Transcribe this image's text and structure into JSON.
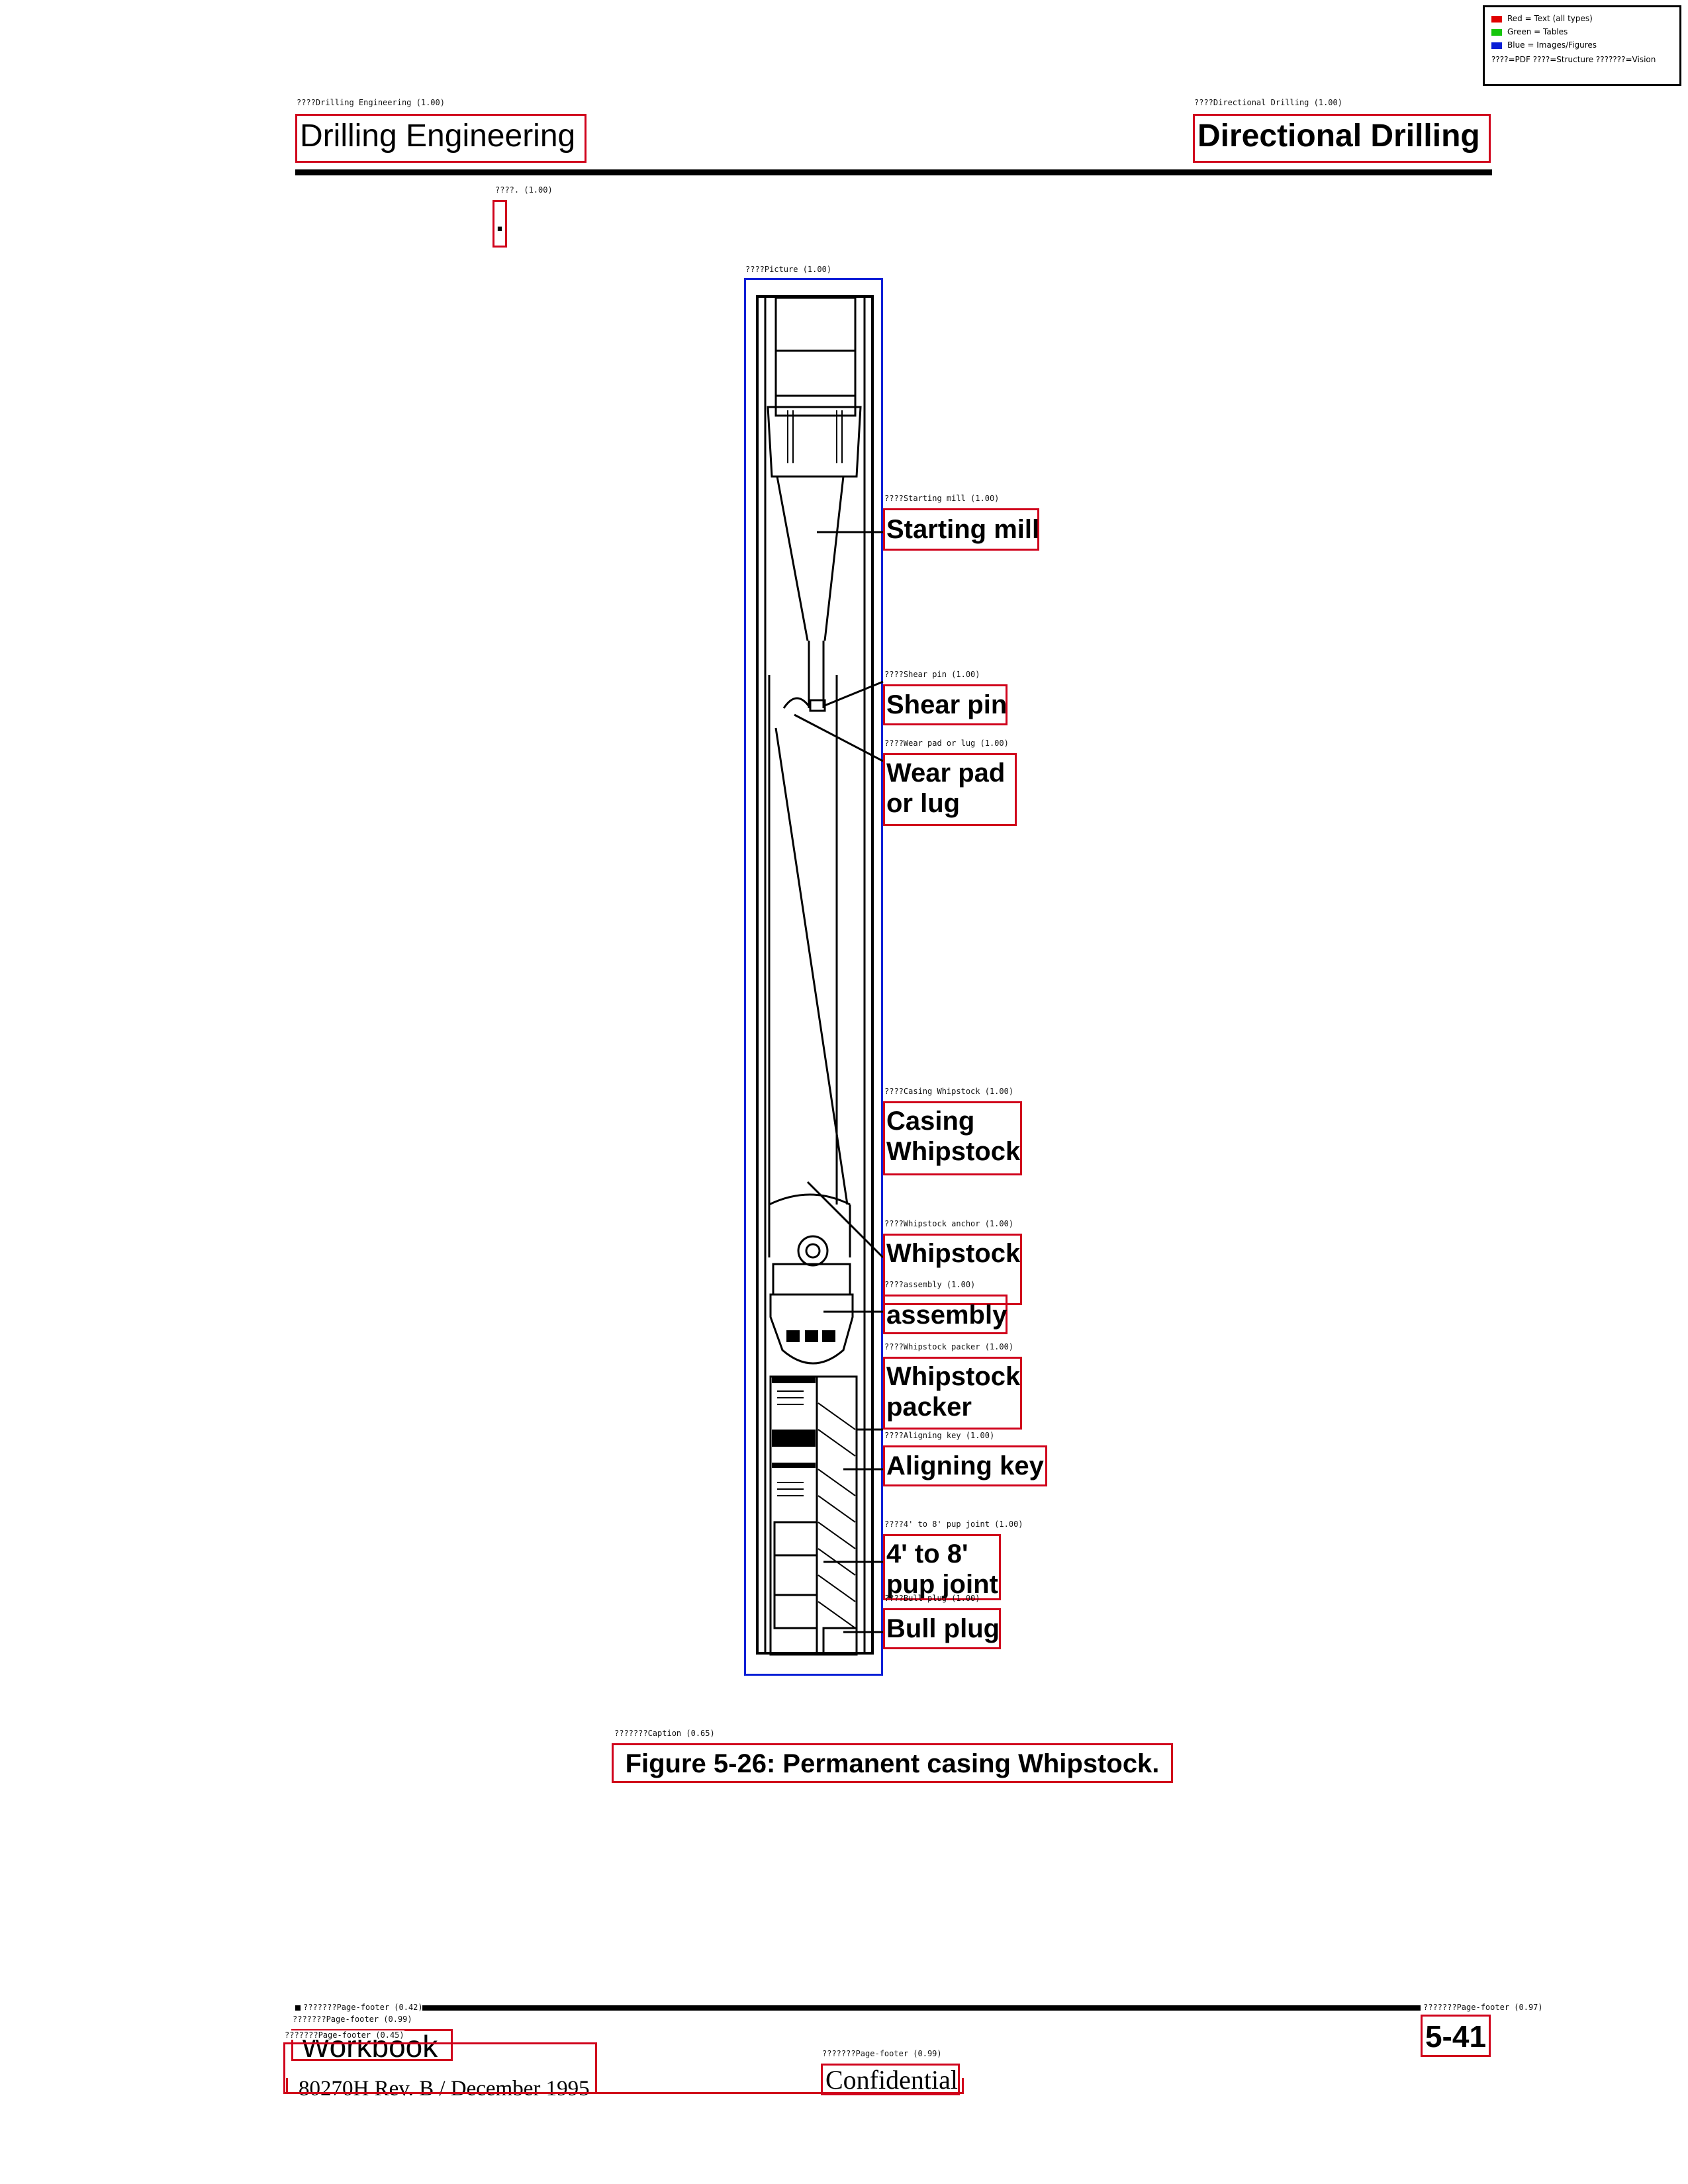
{
  "legend": {
    "red": "Red = Text (all types)",
    "green": "Green = Tables",
    "blue": "Blue = Images/Figures",
    "note": "????=PDF ????=Structure ???????=Vision"
  },
  "colors": {
    "text_box": "#d0021b",
    "figure_box": "#0a1fd6",
    "table_box": "#16c60c"
  },
  "header": {
    "left_tag": "????Drilling Engineering (1.00)",
    "left_title": "Drilling Engineering",
    "right_tag": "????Directional Drilling (1.00)",
    "right_title": "Directional Drilling"
  },
  "dot": {
    "tag": "????. (1.00)",
    "text": "."
  },
  "figure": {
    "tag": "????Picture (1.00)",
    "labels": {
      "starting_mill": {
        "tag": "????Starting mill (1.00)",
        "text": "Starting mill"
      },
      "shear_pin": {
        "tag": "????Shear pin (1.00)",
        "text": "Shear pin"
      },
      "wear_pad": {
        "tag": "????Wear pad or lug (1.00)",
        "line1": "Wear pad",
        "line2": "or lug"
      },
      "casing_whipstock": {
        "tag": "????Casing Whipstock (1.00)",
        "line1": "Casing",
        "line2": "Whipstock"
      },
      "whipstock_anchor": {
        "tag": "????Whipstock anchor (1.00)",
        "text": "Whipstock"
      },
      "assembly": {
        "tag": "????assembly (1.00)",
        "text": "assembly"
      },
      "whipstock_packer": {
        "tag": "????Whipstock packer (1.00)",
        "line1": "Whipstock",
        "line2": "packer"
      },
      "aligning_key": {
        "tag": "????Aligning key (1.00)",
        "text": "Aligning key"
      },
      "pup_joint": {
        "tag": "????4' to 8' pup joint (1.00)",
        "line1": "4' to 8'",
        "line2": "pup joint"
      },
      "bull_plug": {
        "tag": "????Bull plug (1.00)",
        "text": "Bull plug"
      }
    }
  },
  "caption": {
    "tag": "???????Caption (0.65)",
    "text": "Figure 5-26: Permanent casing Whipstock."
  },
  "footer": {
    "tag_rule": "???????Page-footer (0.42)",
    "tag_workbook": "???????Page-footer (0.99)",
    "workbook": "Workbook",
    "tag_rev": "???????Page-footer (0.45)",
    "rev": "80270H Rev. B / December 1995",
    "tag_conf": "???????Page-footer (0.99)",
    "confidential": "Confidential",
    "tag_page": "???????Page-footer (0.97)",
    "page": "5-41"
  }
}
